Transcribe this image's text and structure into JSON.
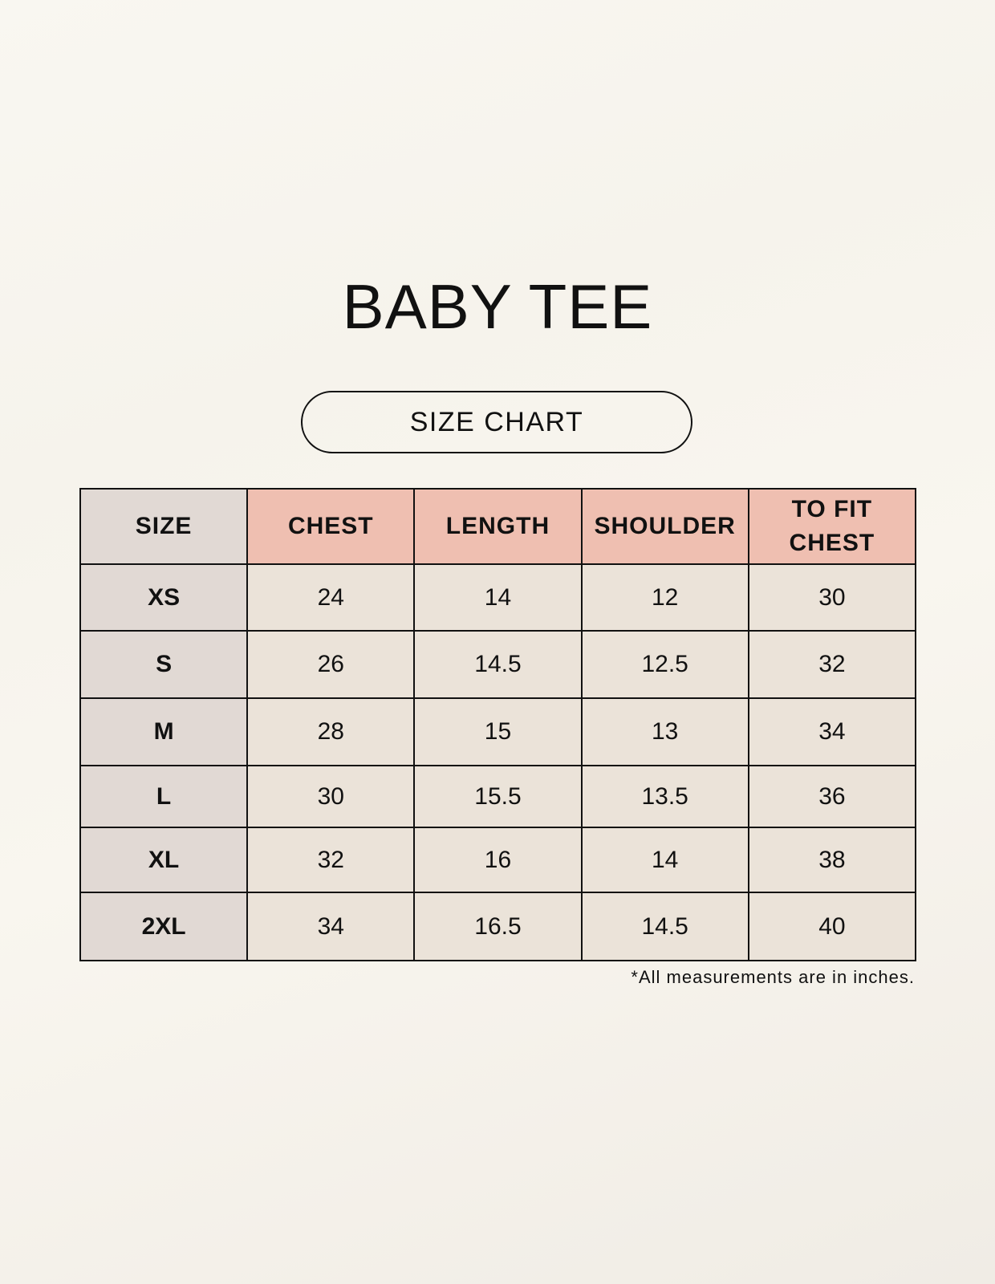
{
  "title": "BABY TEE",
  "subtitle": "SIZE CHART",
  "table": {
    "headers": [
      "SIZE",
      "CHEST",
      "LENGTH",
      "SHOULDER",
      "TO FIT CHEST"
    ],
    "rows": [
      [
        "XS",
        "24",
        "14",
        "12",
        "30"
      ],
      [
        "S",
        "26",
        "14.5",
        "12.5",
        "32"
      ],
      [
        "M",
        "28",
        "15",
        "13",
        "34"
      ],
      [
        "L",
        "30",
        "15.5",
        "13.5",
        "36"
      ],
      [
        "XL",
        "32",
        "16",
        "14",
        "38"
      ],
      [
        "2XL",
        "34",
        "16.5",
        "14.5",
        "40"
      ]
    ]
  },
  "footnote": "*All measurements are in inches.",
  "colors": {
    "header_accent": "#efbfb1",
    "size_column": "#e1d9d4",
    "cell": "#ebe3d9"
  }
}
